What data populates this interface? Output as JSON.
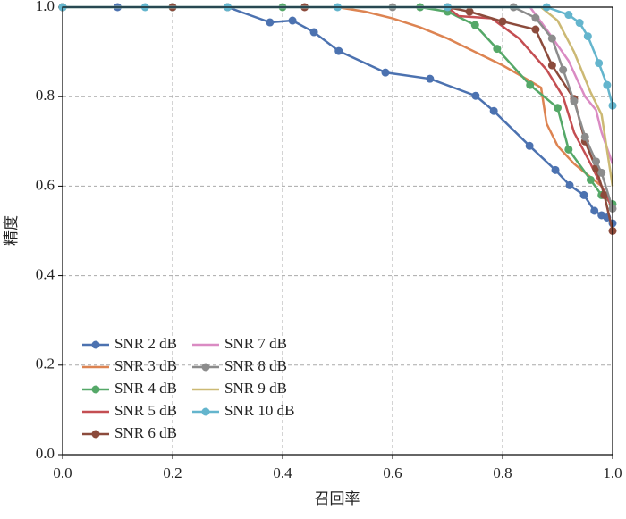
{
  "chart_data": {
    "type": "line",
    "xlabel": "召回率",
    "ylabel": "精度",
    "xlim": [
      0,
      1
    ],
    "ylim": [
      0,
      1
    ],
    "xticks": [
      {
        "value": 0,
        "label": "0.0"
      },
      {
        "value": 0.2,
        "label": "0.2"
      },
      {
        "value": 0.4,
        "label": "0.4"
      },
      {
        "value": 0.6,
        "label": "0.6"
      },
      {
        "value": 0.8,
        "label": "0.8"
      },
      {
        "value": 1,
        "label": "1.0"
      }
    ],
    "yticks": [
      {
        "value": 0,
        "label": "0.0"
      },
      {
        "value": 0.2,
        "label": "0.2"
      },
      {
        "value": 0.4,
        "label": "0.4"
      },
      {
        "value": 0.6,
        "label": "0.6"
      },
      {
        "value": 0.8,
        "label": "0.8"
      },
      {
        "value": 1,
        "label": "1.0"
      }
    ],
    "grid": true,
    "legend": "lower left",
    "series": [
      {
        "name": "SNR 2 dB",
        "color": "#4c72b0",
        "markers": true,
        "x": [
          0,
          0.1,
          0.2,
          0.3,
          0.377,
          0.418,
          0.457,
          0.502,
          0.587,
          0.668,
          0.751,
          0.784,
          0.849,
          0.896,
          0.922,
          0.948,
          0.967,
          0.98,
          0.99,
          1.0
        ],
        "values": [
          1,
          1,
          1,
          1,
          0.966,
          0.97,
          0.944,
          0.902,
          0.854,
          0.84,
          0.802,
          0.768,
          0.69,
          0.636,
          0.602,
          0.58,
          0.545,
          0.535,
          0.53,
          0.517
        ]
      },
      {
        "name": "SNR 3 dB",
        "color": "#dd8452",
        "markers": false,
        "x": [
          0,
          0.5,
          0.55,
          0.6,
          0.65,
          0.7,
          0.75,
          0.8,
          0.85,
          0.87,
          0.88,
          0.9,
          0.93,
          0.96,
          0.98,
          1.0
        ],
        "values": [
          1,
          1,
          0.99,
          0.975,
          0.955,
          0.93,
          0.9,
          0.87,
          0.835,
          0.82,
          0.74,
          0.69,
          0.65,
          0.62,
          0.6,
          0.55
        ]
      },
      {
        "name": "SNR 4 dB",
        "color": "#55a868",
        "markers": true,
        "x": [
          0,
          0.2,
          0.4,
          0.65,
          0.7,
          0.75,
          0.79,
          0.85,
          0.9,
          0.92,
          0.96,
          0.98,
          1.0
        ],
        "values": [
          1,
          1,
          1,
          1,
          0.99,
          0.96,
          0.907,
          0.826,
          0.775,
          0.682,
          0.614,
          0.58,
          0.56
        ]
      },
      {
        "name": "SNR 5 dB",
        "color": "#c44e52",
        "markers": false,
        "x": [
          0,
          0.7,
          0.72,
          0.78,
          0.83,
          0.88,
          0.91,
          0.93,
          0.96,
          0.98,
          1.0
        ],
        "values": [
          1,
          1,
          0.98,
          0.975,
          0.93,
          0.86,
          0.8,
          0.72,
          0.65,
          0.6,
          0.55
        ]
      },
      {
        "name": "SNR 6 dB",
        "color": "#8c4b3c",
        "markers": true,
        "x": [
          0,
          0.2,
          0.44,
          0.7,
          0.74,
          0.8,
          0.86,
          0.89,
          0.93,
          0.95,
          0.97,
          0.985,
          1.0
        ],
        "values": [
          1,
          1,
          1,
          1,
          0.99,
          0.968,
          0.95,
          0.87,
          0.795,
          0.7,
          0.64,
          0.58,
          0.5
        ]
      },
      {
        "name": "SNR 7 dB",
        "color": "#da8bc3",
        "markers": false,
        "x": [
          0,
          0.85,
          0.88,
          0.92,
          0.95,
          0.97,
          0.98,
          1.0
        ],
        "values": [
          1,
          1,
          0.95,
          0.88,
          0.8,
          0.77,
          0.72,
          0.65
        ]
      },
      {
        "name": "SNR 8 dB",
        "color": "#8c8c8c",
        "markers": true,
        "x": [
          0,
          0.3,
          0.6,
          0.82,
          0.86,
          0.89,
          0.91,
          0.93,
          0.95,
          0.97,
          0.98,
          1.0
        ],
        "values": [
          1,
          1,
          1,
          1,
          0.976,
          0.93,
          0.86,
          0.79,
          0.71,
          0.655,
          0.63,
          0.55
        ]
      },
      {
        "name": "SNR 9 dB",
        "color": "#ccb974",
        "markers": false,
        "x": [
          0,
          0.87,
          0.9,
          0.93,
          0.96,
          0.98,
          1.0
        ],
        "values": [
          1,
          1,
          0.97,
          0.9,
          0.81,
          0.76,
          0.6
        ]
      },
      {
        "name": "SNR 10 dB",
        "color": "#64b5cd",
        "markers": true,
        "x": [
          0,
          0.15,
          0.3,
          0.5,
          0.7,
          0.88,
          0.92,
          0.94,
          0.955,
          0.975,
          0.99,
          1.0
        ],
        "values": [
          1,
          1,
          1,
          1,
          1,
          1,
          0.983,
          0.965,
          0.935,
          0.875,
          0.826,
          0.78
        ]
      }
    ]
  }
}
